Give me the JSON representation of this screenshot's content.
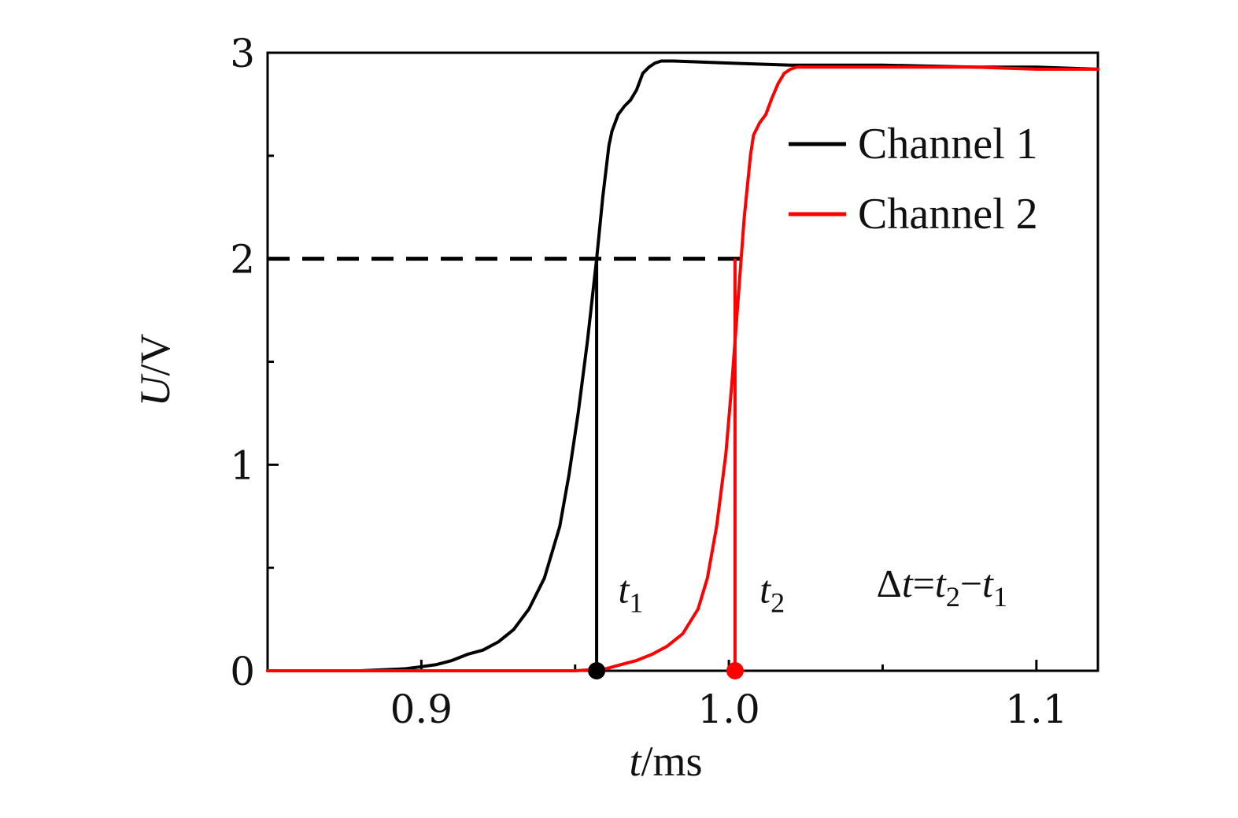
{
  "chart_data": {
    "type": "line",
    "xlabel": {
      "var": "t",
      "unit": "/ms"
    },
    "ylabel": {
      "var": "U",
      "unit": "/V"
    },
    "xlim": [
      0.85,
      1.12
    ],
    "ylim": [
      0,
      3
    ],
    "x_ticks": [
      {
        "value": 0.9,
        "label": "0.9"
      },
      {
        "value": 1.0,
        "label": "1.0"
      },
      {
        "value": 1.1,
        "label": "1.1"
      }
    ],
    "x_minor_ticks": [
      0.95,
      1.05
    ],
    "y_ticks": [
      {
        "value": 0,
        "label": "0"
      },
      {
        "value": 1,
        "label": "1"
      },
      {
        "value": 2,
        "label": "2"
      },
      {
        "value": 3,
        "label": "3"
      }
    ],
    "y_minor_ticks": [
      0.5,
      1.5,
      2.5
    ],
    "grid": false,
    "legend_position": "top-right",
    "series": [
      {
        "name": "Channel 1",
        "color": "#000000",
        "x": [
          0.85,
          0.88,
          0.895,
          0.9,
          0.905,
          0.91,
          0.915,
          0.92,
          0.925,
          0.93,
          0.935,
          0.94,
          0.945,
          0.948,
          0.951,
          0.954,
          0.957,
          0.959,
          0.961,
          0.962,
          0.963,
          0.964,
          0.965,
          0.966,
          0.968,
          0.97,
          0.972,
          0.974,
          0.976,
          0.978,
          0.982,
          1.0,
          1.02,
          1.05,
          1.08,
          1.1,
          1.12
        ],
        "y": [
          0.0,
          0.0,
          0.01,
          0.02,
          0.03,
          0.05,
          0.08,
          0.1,
          0.14,
          0.2,
          0.3,
          0.45,
          0.7,
          0.95,
          1.25,
          1.6,
          2.0,
          2.3,
          2.55,
          2.62,
          2.66,
          2.7,
          2.72,
          2.74,
          2.77,
          2.82,
          2.9,
          2.93,
          2.95,
          2.96,
          2.96,
          2.95,
          2.94,
          2.94,
          2.93,
          2.93,
          2.92
        ]
      },
      {
        "name": "Channel 2",
        "color": "#ff0000",
        "x": [
          0.85,
          0.9,
          0.95,
          0.96,
          0.965,
          0.97,
          0.975,
          0.98,
          0.985,
          0.99,
          0.993,
          0.996,
          0.999,
          1.001,
          1.003,
          1.005,
          1.007,
          1.008,
          1.01,
          1.012,
          1.014,
          1.016,
          1.018,
          1.02,
          1.022,
          1.03,
          1.05,
          1.08,
          1.1,
          1.12
        ],
        "y": [
          0.0,
          0.0,
          0.0,
          0.01,
          0.03,
          0.05,
          0.08,
          0.12,
          0.18,
          0.3,
          0.45,
          0.7,
          1.05,
          1.4,
          1.8,
          2.2,
          2.5,
          2.6,
          2.66,
          2.7,
          2.78,
          2.85,
          2.9,
          2.92,
          2.93,
          2.93,
          2.93,
          2.93,
          2.92,
          2.92
        ]
      }
    ],
    "threshold": {
      "y": 2,
      "x_start": 0.85,
      "x_end": 1.005,
      "style": "dashed",
      "color": "#000000"
    },
    "markers": [
      {
        "x": 0.957,
        "y": 0,
        "color": "#000000",
        "label_var": "t",
        "label_sub": "1",
        "label_x": 0.964,
        "label_y": 0.33
      },
      {
        "x": 1.002,
        "y": 0,
        "color": "#ff0000",
        "label_var": "t",
        "label_sub": "2",
        "label_x": 1.01,
        "label_y": 0.33
      }
    ],
    "annotation": {
      "delta": "Δ",
      "var": "t",
      "eq": "=",
      "t2": "t",
      "sub2": "2",
      "minus": "−",
      "t1": "t",
      "sub1": "1",
      "x": 1.048,
      "y": 0.36
    }
  }
}
